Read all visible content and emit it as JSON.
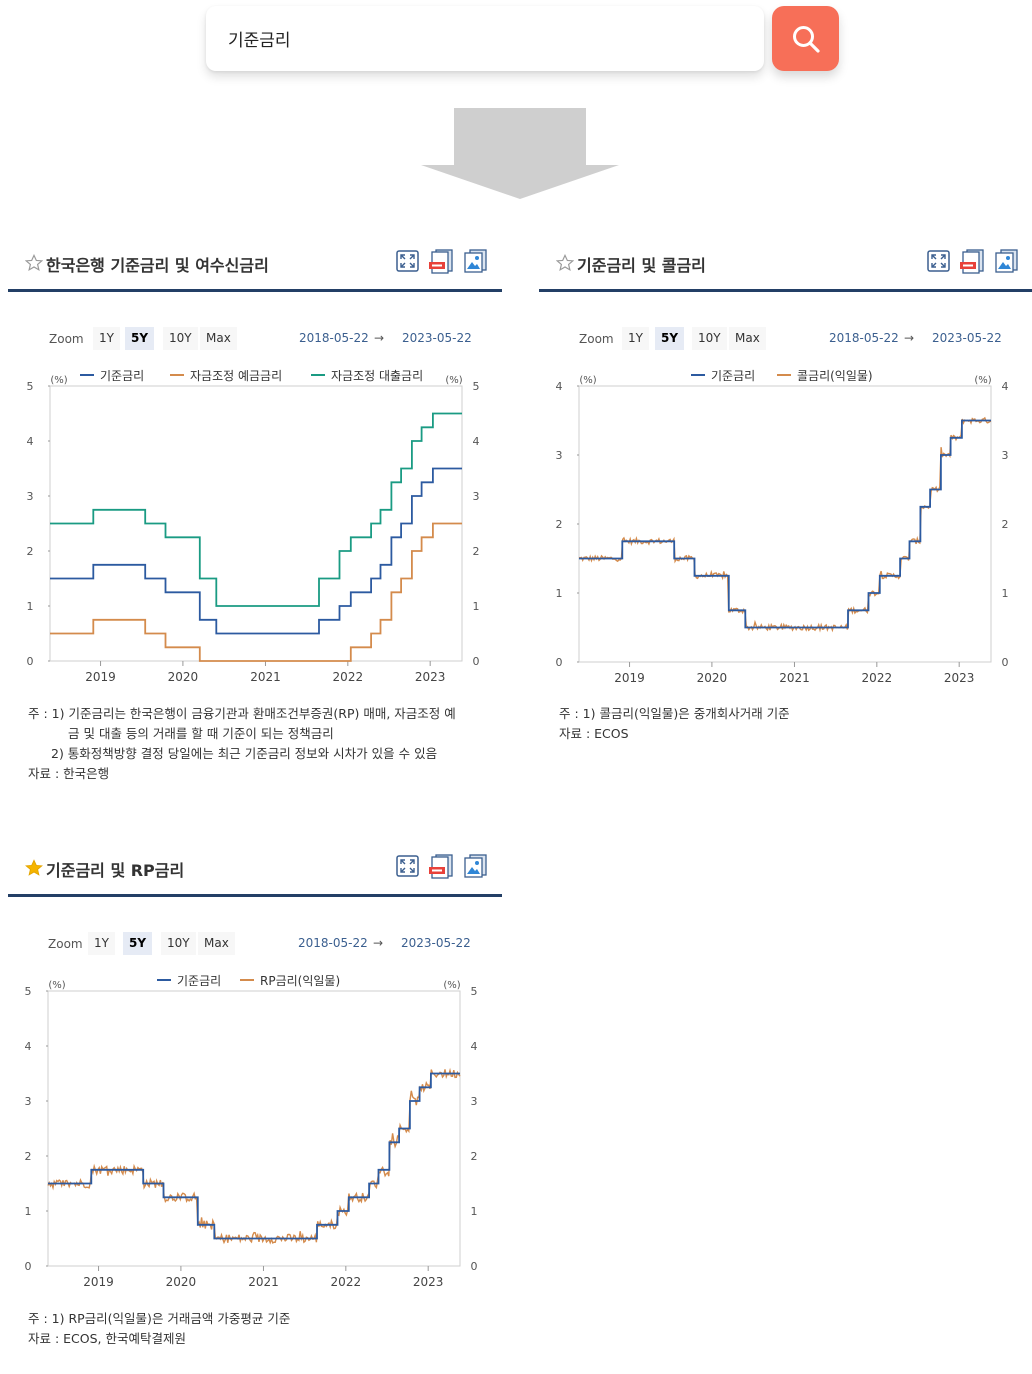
{
  "search": {
    "query": "기준금리"
  },
  "colors": {
    "base": "#2c5aa0",
    "orange": "#d48b4c",
    "green": "#1a9b83",
    "nav": "#233f66",
    "search": "#f76f58"
  },
  "zoom_label": "Zoom",
  "zoom_options": [
    "1Y",
    "5Y",
    "10Y",
    "Max"
  ],
  "zoom_active": "5Y",
  "date_from": "2018-05-22",
  "date_to": "2023-05-22",
  "date_arrow": "→",
  "unit": "(%)",
  "panels": [
    {
      "title": "한국은행 기준금리 및 여수신금리",
      "starred": false,
      "legend": [
        "기준금리",
        "자금조정 예금금리",
        "자금조정 대출금리"
      ],
      "notes": [
        "주 : 1)  기준금리는 한국은행이 금융기관과 환매조건부증권(RP) 매매, 자금조정 예",
        "금 및 대출 등의 거래를 할 때 기준이 되는 정책금리",
        "2)  통화정책방향 결정 당일에는 최근 기준금리 정보와 시차가 있을 수 있음",
        "자료 :  한국은행"
      ]
    },
    {
      "title": "기준금리 및 콜금리",
      "starred": false,
      "legend": [
        "기준금리",
        "콜금리(익일물)"
      ],
      "notes": [
        "주 : 1)  콜금리(익일물)은 중개회사거래 기준",
        "자료 :  ECOS"
      ]
    },
    {
      "title": "기준금리 및 RP금리",
      "starred": true,
      "legend": [
        "기준금리",
        "RP금리(익일물)"
      ],
      "notes": [
        "주 : 1)  RP금리(익일물)은 거래금액 가중평균 기준",
        "자료 :  ECOS, 한국예탁결제원"
      ]
    }
  ],
  "chart_data": [
    {
      "type": "line",
      "title": "한국은행 기준금리 및 여수신금리",
      "x_ticks": [
        "2019",
        "2020",
        "2021",
        "2022",
        "2023"
      ],
      "ylim": [
        0,
        5
      ],
      "y_ticks": [
        0,
        1,
        2,
        3,
        4,
        5
      ],
      "series": [
        {
          "name": "기준금리",
          "step": [
            [
              "2018-05-22",
              1.5
            ],
            [
              "2018-11-30",
              1.75
            ],
            [
              "2019-07-18",
              1.5
            ],
            [
              "2019-10-16",
              1.25
            ],
            [
              "2020-03-16",
              0.75
            ],
            [
              "2020-05-28",
              0.5
            ],
            [
              "2021-08-26",
              0.75
            ],
            [
              "2021-11-25",
              1.0
            ],
            [
              "2022-01-14",
              1.25
            ],
            [
              "2022-04-14",
              1.5
            ],
            [
              "2022-05-26",
              1.75
            ],
            [
              "2022-07-13",
              2.25
            ],
            [
              "2022-08-25",
              2.5
            ],
            [
              "2022-10-12",
              3.0
            ],
            [
              "2022-11-24",
              3.25
            ],
            [
              "2023-01-13",
              3.5
            ],
            [
              "2023-05-22",
              3.5
            ]
          ]
        },
        {
          "name": "자금조정 예금금리",
          "step": [
            [
              "2018-05-22",
              0.5
            ],
            [
              "2018-11-30",
              0.75
            ],
            [
              "2019-07-18",
              0.5
            ],
            [
              "2019-10-16",
              0.25
            ],
            [
              "2020-03-16",
              0.0
            ],
            [
              "2021-11-25",
              0.0
            ],
            [
              "2022-01-14",
              0.25
            ],
            [
              "2022-04-14",
              0.5
            ],
            [
              "2022-05-26",
              0.75
            ],
            [
              "2022-07-13",
              1.25
            ],
            [
              "2022-08-25",
              1.5
            ],
            [
              "2022-10-12",
              2.0
            ],
            [
              "2022-11-24",
              2.25
            ],
            [
              "2023-01-13",
              2.5
            ],
            [
              "2023-05-22",
              2.5
            ]
          ]
        },
        {
          "name": "자금조정 대출금리",
          "step": [
            [
              "2018-05-22",
              2.5
            ],
            [
              "2018-11-30",
              2.75
            ],
            [
              "2019-07-18",
              2.5
            ],
            [
              "2019-10-16",
              2.25
            ],
            [
              "2020-03-16",
              1.5
            ],
            [
              "2020-05-28",
              1.0
            ],
            [
              "2021-08-26",
              1.5
            ],
            [
              "2021-11-25",
              2.0
            ],
            [
              "2022-01-14",
              2.25
            ],
            [
              "2022-04-14",
              2.5
            ],
            [
              "2022-05-26",
              2.75
            ],
            [
              "2022-07-13",
              3.25
            ],
            [
              "2022-08-25",
              3.5
            ],
            [
              "2022-10-12",
              4.0
            ],
            [
              "2022-11-24",
              4.25
            ],
            [
              "2023-01-13",
              4.5
            ],
            [
              "2023-05-22",
              4.5
            ]
          ]
        }
      ]
    },
    {
      "type": "line",
      "title": "기준금리 및 콜금리",
      "x_ticks": [
        "2019",
        "2020",
        "2021",
        "2022",
        "2023"
      ],
      "ylim": [
        0,
        4
      ],
      "y_ticks": [
        0,
        1,
        2,
        3,
        4
      ],
      "series": [
        {
          "name": "기준금리",
          "step": [
            [
              "2018-05-22",
              1.5
            ],
            [
              "2018-11-30",
              1.75
            ],
            [
              "2019-07-18",
              1.5
            ],
            [
              "2019-10-16",
              1.25
            ],
            [
              "2020-03-16",
              0.75
            ],
            [
              "2020-05-28",
              0.5
            ],
            [
              "2021-08-26",
              0.75
            ],
            [
              "2021-11-25",
              1.0
            ],
            [
              "2022-01-14",
              1.25
            ],
            [
              "2022-04-14",
              1.5
            ],
            [
              "2022-05-26",
              1.75
            ],
            [
              "2022-07-13",
              2.25
            ],
            [
              "2022-08-25",
              2.5
            ],
            [
              "2022-10-12",
              3.0
            ],
            [
              "2022-11-24",
              3.25
            ],
            [
              "2023-01-13",
              3.5
            ],
            [
              "2023-05-22",
              3.5
            ]
          ]
        },
        {
          "name": "콜금리(익일물)",
          "follows": "기준금리",
          "noise": 0.04
        }
      ]
    },
    {
      "type": "line",
      "title": "기준금리 및 RP금리",
      "x_ticks": [
        "2019",
        "2020",
        "2021",
        "2022",
        "2023"
      ],
      "ylim": [
        0,
        5
      ],
      "y_ticks": [
        0,
        1,
        2,
        3,
        4,
        5
      ],
      "series": [
        {
          "name": "기준금리",
          "step": [
            [
              "2018-05-22",
              1.5
            ],
            [
              "2018-11-30",
              1.75
            ],
            [
              "2019-07-18",
              1.5
            ],
            [
              "2019-10-16",
              1.25
            ],
            [
              "2020-03-16",
              0.75
            ],
            [
              "2020-05-28",
              0.5
            ],
            [
              "2021-08-26",
              0.75
            ],
            [
              "2021-11-25",
              1.0
            ],
            [
              "2022-01-14",
              1.25
            ],
            [
              "2022-04-14",
              1.5
            ],
            [
              "2022-05-26",
              1.75
            ],
            [
              "2022-07-13",
              2.25
            ],
            [
              "2022-08-25",
              2.5
            ],
            [
              "2022-10-12",
              3.0
            ],
            [
              "2022-11-24",
              3.25
            ],
            [
              "2023-01-13",
              3.5
            ],
            [
              "2023-05-22",
              3.5
            ]
          ]
        },
        {
          "name": "RP금리(익일물)",
          "follows": "기준금리",
          "noise": 0.08
        }
      ]
    }
  ]
}
